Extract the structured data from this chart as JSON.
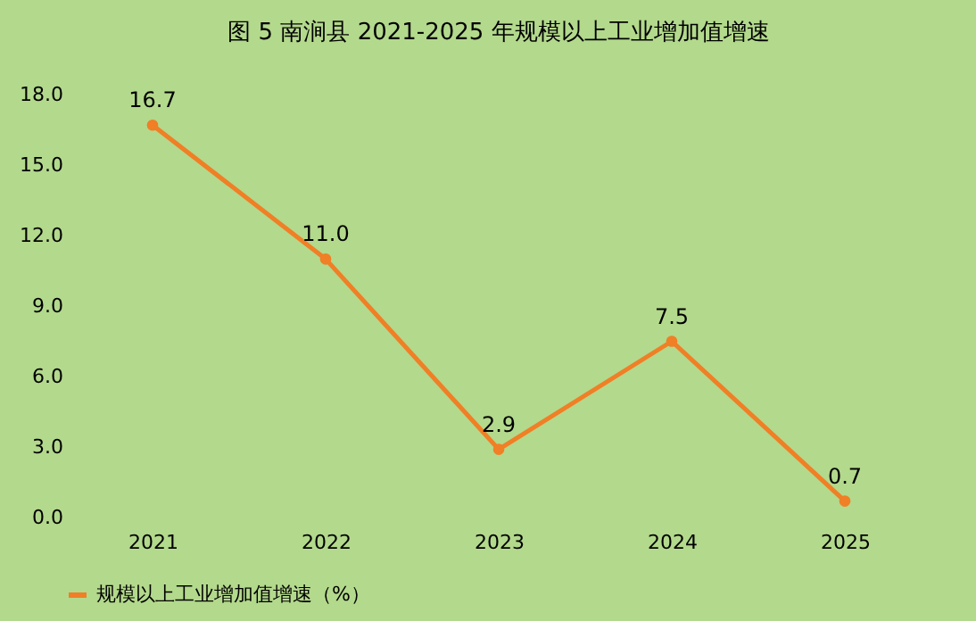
{
  "chart_data": {
    "type": "line",
    "title": "图 5    南涧县 2021-2025 年规模以上工业增加值增速",
    "categories": [
      "2021",
      "2022",
      "2023",
      "2024",
      "2025"
    ],
    "series": [
      {
        "name": "规模以上工业增加值增速（%）",
        "color": "#f07f26",
        "values": [
          16.7,
          11.0,
          2.9,
          7.5,
          0.7
        ],
        "value_labels": [
          "16.7",
          "11.0",
          "2.9",
          "7.5",
          "0.7"
        ]
      }
    ],
    "ylim": [
      0,
      18
    ],
    "yticks": [
      {
        "value": 0,
        "label": "0.0"
      },
      {
        "value": 3,
        "label": "3.0"
      },
      {
        "value": 6,
        "label": "6.0"
      },
      {
        "value": 9,
        "label": "9.0"
      },
      {
        "value": 12,
        "label": "12.0"
      },
      {
        "value": 15,
        "label": "15.0"
      },
      {
        "value": 18,
        "label": "18.0"
      }
    ],
    "grid": false,
    "legend": "bottom",
    "marker": "circle",
    "line_style": "solid"
  }
}
